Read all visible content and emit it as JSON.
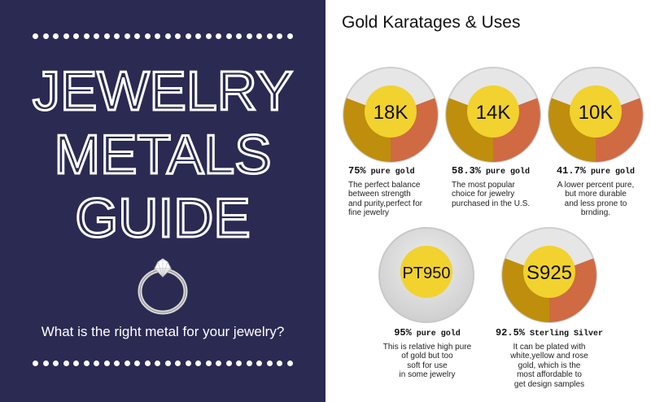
{
  "left": {
    "title_lines": [
      "JEWELRY",
      "METALS",
      "GUIDE"
    ],
    "question": "What is the right metal for your jewelry?"
  },
  "right": {
    "title": "Gold Karatages & Uses",
    "items": [
      {
        "label": "18K",
        "percent": "75%",
        "qualifier": "pure gold",
        "description": "The perfect balance\nbetween strength\nand purity,perfect for\nfine jewelry"
      },
      {
        "label": "14K",
        "percent": "58.3%",
        "qualifier": "pure gold",
        "description": "The most popular\nchoice for jewelry\npurchased in the U.S."
      },
      {
        "label": "10K",
        "percent": "41.7%",
        "qualifier": "pure gold",
        "description": "A lower percent pure,\nbut more durable\nand less prone to\nbrnding."
      },
      {
        "label": "PT950",
        "percent": "95%",
        "qualifier": "pure gold",
        "description": "This is relative high pure\nof gold but too\nsoft for use\nin some jewelry"
      },
      {
        "label": "S925",
        "percent": "92.5%",
        "qualifier": "Sterling Silver",
        "description": "It can be plated with\nwhite,yellow and rose\ngold, which is the\nmost affordable to\nget design samples"
      }
    ]
  },
  "colors": {
    "navy": "#2a2a52",
    "gold_dark": "#bf8e0c",
    "copper": "#cf6a43",
    "yellow": "#f2d22e",
    "gray": "#dcdcdc"
  }
}
